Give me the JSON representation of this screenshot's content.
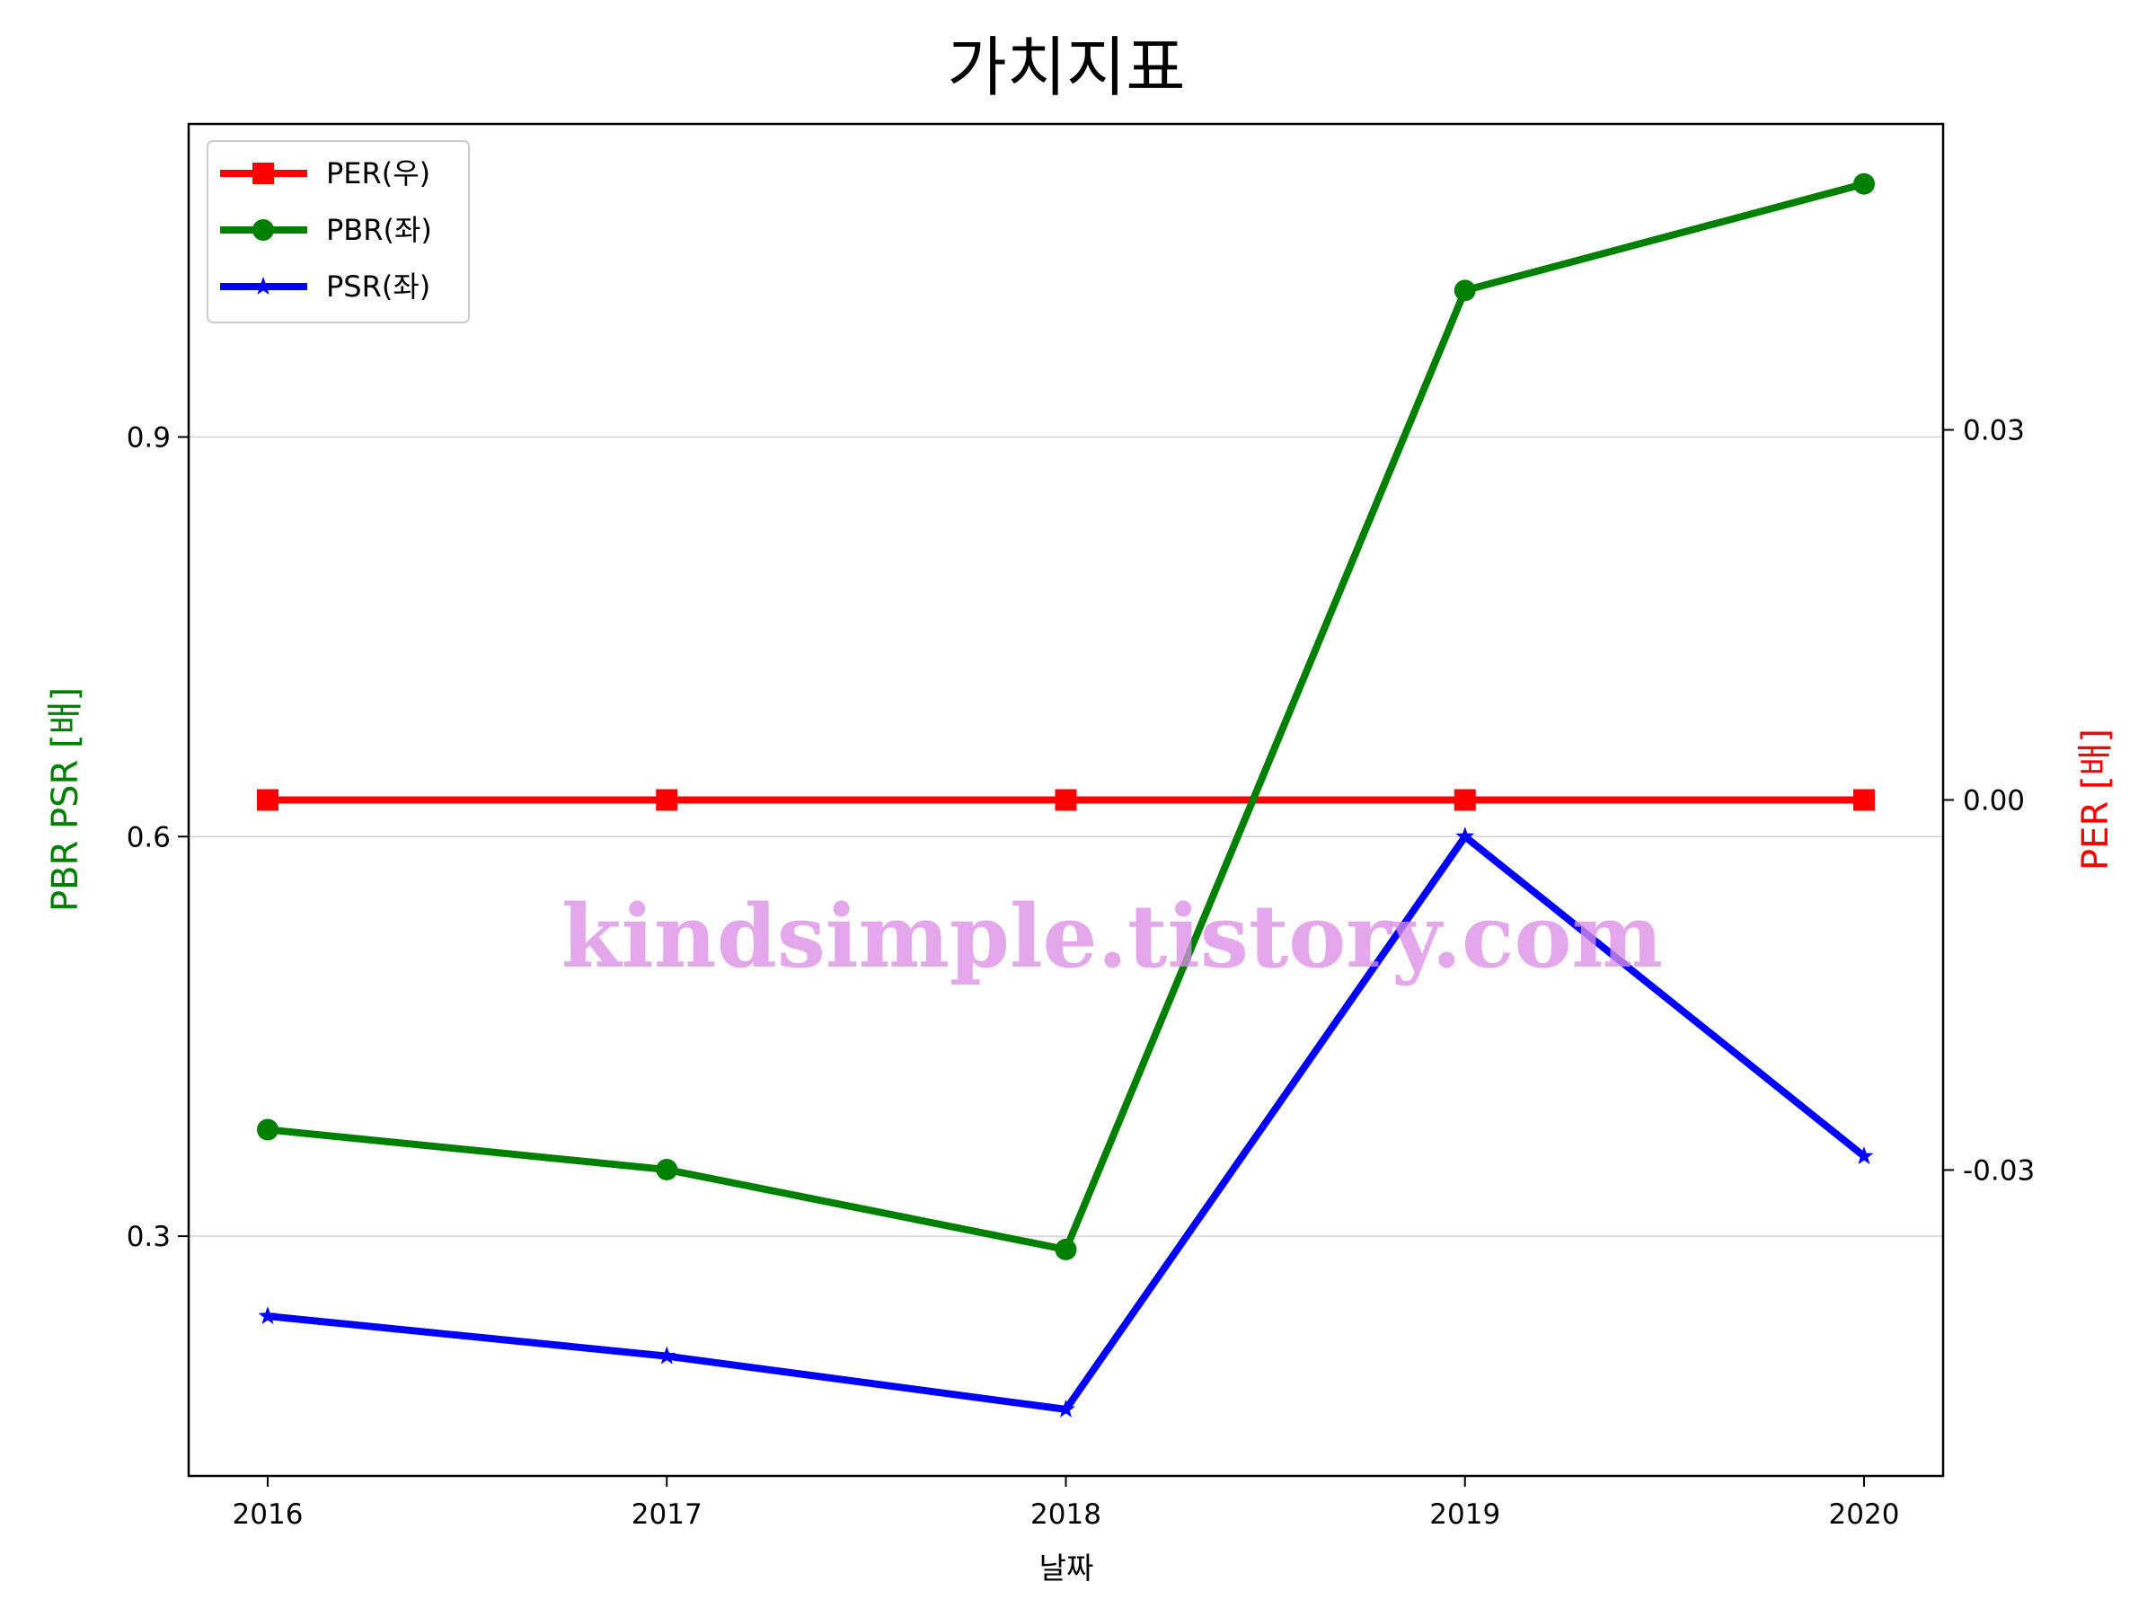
{
  "chart_data": {
    "type": "line",
    "title": "가치지표",
    "xlabel": "날짜",
    "ylabel_left": "PBR PSR [배]",
    "ylabel_right": "PER [배]",
    "categories": [
      "2016",
      "2017",
      "2018",
      "2019",
      "2020"
    ],
    "left_axis": {
      "ylim": [
        0.12,
        1.135
      ],
      "ticks": [
        0.3,
        0.6,
        0.9
      ],
      "tick_labels": [
        "0.3",
        "0.6",
        "0.9"
      ],
      "color": "#008000"
    },
    "right_axis": {
      "ylim": [
        -0.0548,
        0.0548
      ],
      "ticks": [
        -0.03,
        0.0,
        0.03
      ],
      "tick_labels": [
        "-0.03",
        "0.00",
        "0.03"
      ],
      "color": "#ff0000"
    },
    "grid": "horizontal (left axis)",
    "legend_position": "upper-left",
    "series": [
      {
        "name": "PER(우)",
        "axis": "right",
        "color": "#ff0000",
        "marker": "square",
        "values": [
          0,
          0,
          0,
          0,
          0
        ]
      },
      {
        "name": "PBR(좌)",
        "axis": "left",
        "color": "#008000",
        "marker": "circle",
        "values": [
          0.38,
          0.35,
          0.29,
          1.01,
          1.09
        ]
      },
      {
        "name": "PSR(좌)",
        "axis": "left",
        "color": "#0000ff",
        "marker": "star",
        "values": [
          0.24,
          0.21,
          0.17,
          0.6,
          0.36
        ]
      }
    ]
  },
  "watermark": "kindsimple.tistory.com"
}
